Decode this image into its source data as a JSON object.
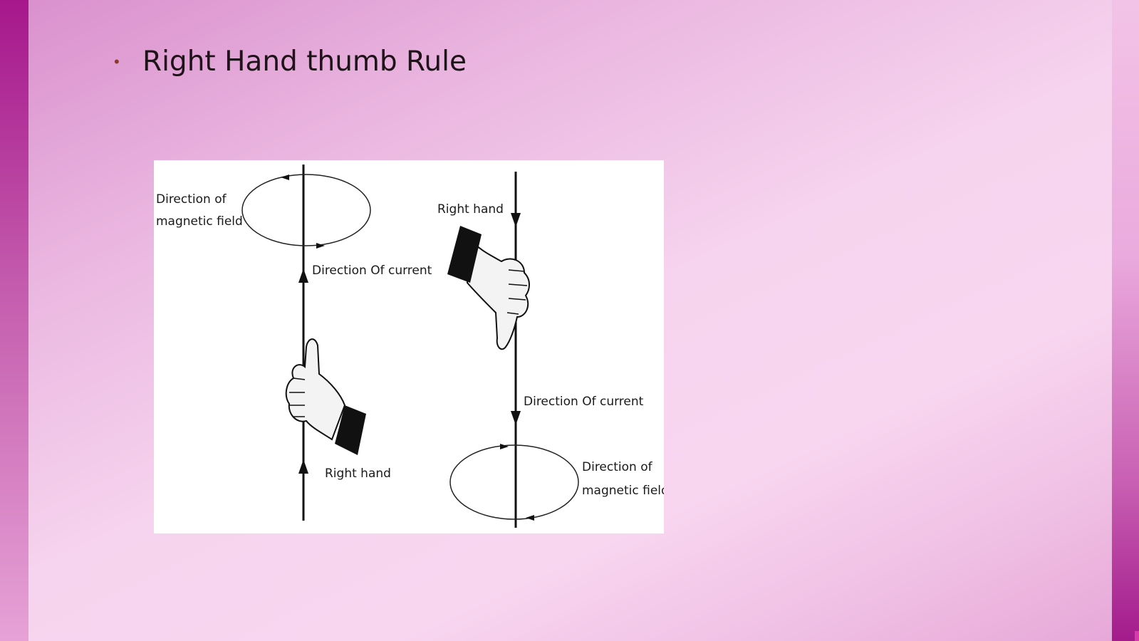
{
  "slide": {
    "bullet": "•",
    "title": "Right Hand thumb Rule"
  },
  "diagram": {
    "left": {
      "field_label_line1": "Direction of",
      "field_label_line2": "magnetic field",
      "current_label": "Direction Of current",
      "hand_label": "Right hand"
    },
    "right": {
      "hand_label": "Right hand",
      "current_label": "Direction Of current",
      "field_label_line1": "Direction of",
      "field_label_line2": "magnetic field"
    }
  },
  "colors": {
    "accent_bar": "#a6178c",
    "title_text": "#1e1318",
    "bullet": "#8a3a2a"
  }
}
